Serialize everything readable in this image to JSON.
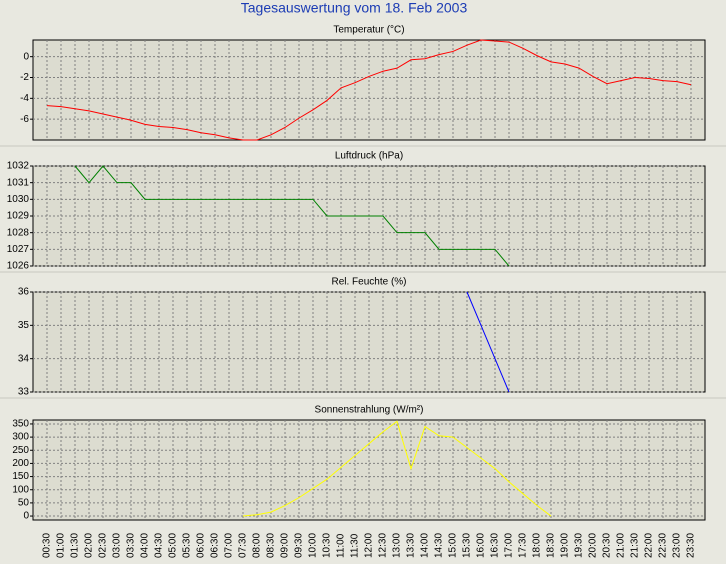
{
  "title": "Tagesauswertung vom 18. Feb 2003",
  "chart_data": [
    {
      "type": "line",
      "title": "Temperatur (°C)",
      "ylim": [
        -8,
        1.6
      ],
      "yticks": [
        0,
        -2,
        -4,
        -6
      ],
      "grid": true,
      "series": [
        {
          "name": "Temperatur",
          "color": "#ff0000",
          "values": [
            -4.7,
            -4.8,
            -5.0,
            -5.2,
            -5.5,
            -5.8,
            -6.1,
            -6.5,
            -6.7,
            -6.8,
            -7.0,
            -7.3,
            -7.5,
            -7.8,
            -8.0,
            -8.0,
            -7.5,
            -6.8,
            -5.9,
            -5.1,
            -4.2,
            -3.0,
            -2.5,
            -1.9,
            -1.4,
            -1.1,
            -0.3,
            -0.2,
            0.2,
            0.5,
            1.1,
            1.6,
            1.5,
            1.4,
            0.8,
            0.1,
            -0.5,
            -0.7,
            -1.1,
            -1.9,
            -2.6,
            -2.3,
            -2.0,
            -2.1,
            -2.3,
            -2.4,
            -2.7
          ]
        }
      ]
    },
    {
      "type": "line",
      "title": "Luftdruck (hPa)",
      "ylim": [
        1026,
        1032
      ],
      "yticks": [
        1032,
        1031,
        1030,
        1029,
        1028,
        1027,
        1026
      ],
      "grid": true,
      "series": [
        {
          "name": "Luftdruck",
          "color": "#008000",
          "values": [
            null,
            null,
            1032,
            1031,
            1032,
            1031,
            1031,
            1030,
            1030,
            1030,
            1030,
            1030,
            1030,
            1030,
            1030,
            1030,
            1030,
            1030,
            1030,
            1030,
            1029,
            1029,
            1029,
            1029,
            1029,
            1028,
            1028,
            1028,
            1027,
            1027,
            1027,
            1027,
            1027,
            1026,
            null,
            null,
            null,
            null,
            null,
            null,
            null,
            null,
            null,
            null,
            null,
            null,
            null
          ]
        }
      ]
    },
    {
      "type": "line",
      "title": "Rel. Feuchte (%)",
      "ylim": [
        33,
        36
      ],
      "yticks": [
        36,
        35,
        34,
        33
      ],
      "grid": true,
      "series": [
        {
          "name": "Rel. Feuchte",
          "color": "#0000ff",
          "values": [
            null,
            null,
            null,
            null,
            null,
            null,
            null,
            null,
            null,
            null,
            null,
            null,
            null,
            null,
            null,
            null,
            null,
            null,
            null,
            null,
            null,
            null,
            null,
            null,
            null,
            null,
            null,
            null,
            null,
            null,
            36,
            35,
            34,
            33,
            null,
            null,
            null,
            null,
            null,
            null,
            null,
            null,
            null,
            null,
            null,
            null,
            null
          ]
        }
      ]
    },
    {
      "type": "line",
      "title": "Sonnenstrahlung (W/m²)",
      "ylim": [
        -15,
        365
      ],
      "yticks": [
        350,
        300,
        250,
        200,
        150,
        100,
        50,
        0
      ],
      "grid": true,
      "categories": [
        "00:30",
        "01:00",
        "01:30",
        "02:00",
        "02:30",
        "03:00",
        "03:30",
        "04:00",
        "04:30",
        "05:00",
        "05:30",
        "06:00",
        "06:30",
        "07:00",
        "07:30",
        "08:00",
        "08:30",
        "09:00",
        "09:30",
        "10:00",
        "10:30",
        "11:00",
        "11:30",
        "12:00",
        "12:30",
        "13:00",
        "13:30",
        "14:00",
        "14:30",
        "15:00",
        "15:30",
        "16:00",
        "16:30",
        "17:00",
        "17:30",
        "18:00",
        "18:30",
        "19:00",
        "19:30",
        "20:00",
        "20:30",
        "21:00",
        "21:30",
        "22:00",
        "22:30",
        "23:00",
        "23:30"
      ],
      "series": [
        {
          "name": "Sonnenstrahlung",
          "color": "#ffff00",
          "values": [
            null,
            null,
            null,
            null,
            null,
            null,
            null,
            null,
            null,
            null,
            null,
            null,
            null,
            null,
            0,
            5,
            15,
            40,
            70,
            105,
            140,
            185,
            230,
            275,
            320,
            360,
            180,
            340,
            305,
            300,
            260,
            220,
            180,
            130,
            85,
            40,
            0,
            null,
            null,
            null,
            null,
            null,
            null,
            null,
            null,
            null,
            null
          ]
        }
      ]
    }
  ]
}
